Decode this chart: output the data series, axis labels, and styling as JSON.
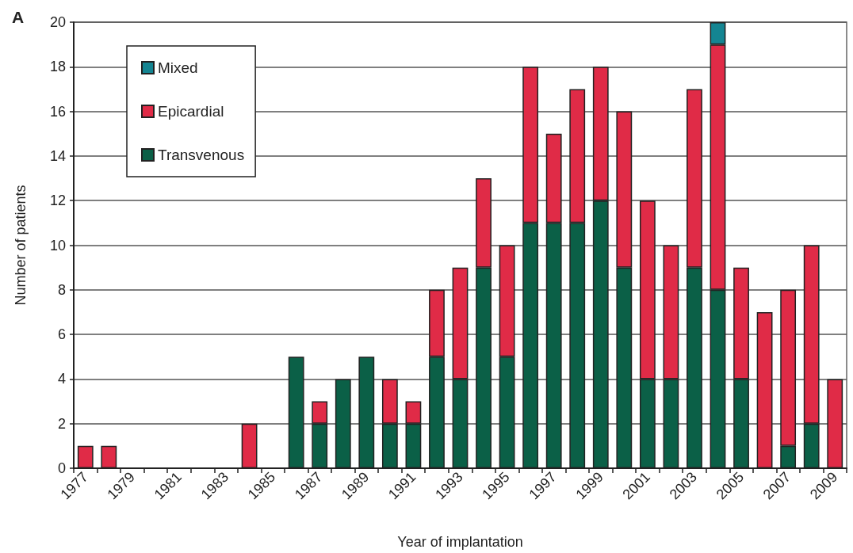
{
  "chart_data": {
    "type": "bar",
    "title": "A",
    "xlabel": "Year of implantation",
    "ylabel": "Number of patients",
    "categories": [
      "1977",
      null,
      "1979",
      null,
      "1981",
      null,
      "1983",
      null,
      "1985",
      null,
      "1987",
      null,
      "1989",
      null,
      "1991",
      null,
      "1993",
      null,
      "1995",
      null,
      "1997",
      null,
      "1999",
      null,
      "2001",
      null,
      "2003",
      null,
      "2005",
      null,
      "2007",
      null,
      "2009"
    ],
    "stacked": true,
    "series": [
      {
        "name": "Transvenous",
        "color": "#0b6047",
        "values": [
          0,
          0,
          0,
          0,
          0,
          0,
          0,
          0,
          0,
          5,
          2,
          4,
          5,
          2,
          2,
          5,
          4,
          9,
          5,
          11,
          11,
          11,
          12,
          9,
          4,
          4,
          9,
          8,
          4,
          0,
          1,
          2,
          0
        ]
      },
      {
        "name": "Epicardial",
        "color": "#e02b47",
        "values": [
          1,
          1,
          0,
          0,
          0,
          0,
          0,
          2,
          0,
          0,
          1,
          0,
          0,
          2,
          1,
          3,
          5,
          4,
          5,
          7,
          4,
          6,
          6,
          7,
          8,
          6,
          8,
          11,
          5,
          7,
          7,
          8,
          4
        ]
      },
      {
        "name": "Mixed",
        "color": "#148592",
        "values": [
          0,
          0,
          0,
          0,
          0,
          0,
          0,
          0,
          0,
          0,
          0,
          0,
          0,
          0,
          0,
          0,
          0,
          0,
          0,
          0,
          0,
          0,
          0,
          0,
          0,
          0,
          0,
          1,
          0,
          0,
          0,
          0,
          0
        ]
      }
    ],
    "ylim": [
      0,
      20
    ],
    "yticks": [
      0,
      2,
      4,
      6,
      8,
      10,
      12,
      14,
      16,
      18,
      20
    ],
    "grid": "y",
    "legend": "top left"
  }
}
